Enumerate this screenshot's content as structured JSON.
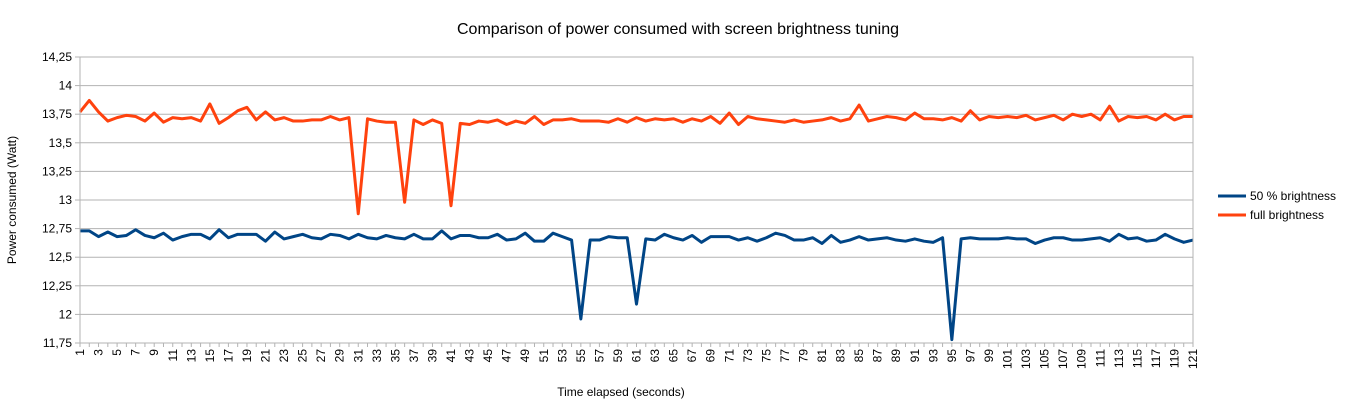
{
  "chart_data": {
    "type": "line",
    "title": "Comparison of power consumed with screen brightness tuning",
    "xlabel": "Time elapsed (seconds)",
    "ylabel": "Power consumed (Watt)",
    "ylim": [
      11.75,
      14.25
    ],
    "y_ticks": [
      "11,75",
      "12",
      "12,25",
      "12,5",
      "12,75",
      "13",
      "13,25",
      "13,5",
      "13,75",
      "14",
      "14,25"
    ],
    "x": [
      1,
      2,
      3,
      4,
      5,
      6,
      7,
      8,
      9,
      10,
      11,
      12,
      13,
      14,
      15,
      16,
      17,
      18,
      19,
      20,
      21,
      22,
      23,
      24,
      25,
      26,
      27,
      28,
      29,
      30,
      31,
      32,
      33,
      34,
      35,
      36,
      37,
      38,
      39,
      40,
      41,
      42,
      43,
      44,
      45,
      46,
      47,
      48,
      49,
      50,
      51,
      52,
      53,
      54,
      55,
      56,
      57,
      58,
      59,
      60,
      61,
      62,
      63,
      64,
      65,
      66,
      67,
      68,
      69,
      70,
      71,
      72,
      73,
      74,
      75,
      76,
      77,
      78,
      79,
      80,
      81,
      82,
      83,
      84,
      85,
      86,
      87,
      88,
      89,
      90,
      91,
      92,
      93,
      94,
      95,
      96,
      97,
      98,
      99,
      100,
      101,
      102,
      103,
      104,
      105,
      106,
      107,
      108,
      109,
      110,
      111,
      112,
      113,
      114,
      115,
      116,
      117,
      118,
      119,
      120,
      121
    ],
    "x_tick_labels": [
      "1",
      "3",
      "5",
      "7",
      "9",
      "11",
      "13",
      "15",
      "17",
      "19",
      "21",
      "23",
      "25",
      "27",
      "29",
      "31",
      "33",
      "35",
      "37",
      "39",
      "41",
      "43",
      "45",
      "47",
      "49",
      "51",
      "53",
      "55",
      "57",
      "59",
      "61",
      "63",
      "65",
      "67",
      "69",
      "71",
      "73",
      "75",
      "77",
      "79",
      "81",
      "83",
      "85",
      "87",
      "89",
      "91",
      "93",
      "95",
      "97",
      "99",
      "101",
      "103",
      "105",
      "107",
      "109",
      "111",
      "113",
      "115",
      "117",
      "119",
      "121"
    ],
    "grid": "horizontal",
    "legend_position": "right",
    "series": [
      {
        "name": "50 % brightness",
        "color": "#004586",
        "values": [
          12.73,
          12.73,
          12.68,
          12.72,
          12.68,
          12.69,
          12.74,
          12.69,
          12.67,
          12.71,
          12.65,
          12.68,
          12.7,
          12.7,
          12.66,
          12.74,
          12.67,
          12.7,
          12.7,
          12.7,
          12.64,
          12.72,
          12.66,
          12.68,
          12.7,
          12.67,
          12.66,
          12.7,
          12.69,
          12.66,
          12.7,
          12.67,
          12.66,
          12.69,
          12.67,
          12.66,
          12.7,
          12.66,
          12.66,
          12.73,
          12.66,
          12.69,
          12.69,
          12.67,
          12.67,
          12.7,
          12.65,
          12.66,
          12.71,
          12.64,
          12.64,
          12.71,
          12.68,
          12.65,
          11.96,
          12.65,
          12.65,
          12.68,
          12.67,
          12.67,
          12.09,
          12.66,
          12.65,
          12.7,
          12.67,
          12.65,
          12.69,
          12.63,
          12.68,
          12.68,
          12.68,
          12.65,
          12.67,
          12.64,
          12.67,
          12.71,
          12.69,
          12.65,
          12.65,
          12.67,
          12.62,
          12.69,
          12.63,
          12.65,
          12.68,
          12.65,
          12.66,
          12.67,
          12.65,
          12.64,
          12.66,
          12.64,
          12.63,
          12.67,
          11.78,
          12.66,
          12.67,
          12.66,
          12.66,
          12.66,
          12.67,
          12.66,
          12.66,
          12.62,
          12.65,
          12.67,
          12.67,
          12.65,
          12.65,
          12.66,
          12.67,
          12.64,
          12.7,
          12.66,
          12.67,
          12.64,
          12.65,
          12.7,
          12.66,
          12.63,
          12.65
        ]
      },
      {
        "name": "full brightness",
        "color": "#ff420e",
        "values": [
          13.77,
          13.87,
          13.77,
          13.69,
          13.72,
          13.74,
          13.73,
          13.69,
          13.76,
          13.68,
          13.72,
          13.71,
          13.72,
          13.69,
          13.84,
          13.67,
          13.72,
          13.78,
          13.81,
          13.7,
          13.77,
          13.7,
          13.72,
          13.69,
          13.69,
          13.7,
          13.7,
          13.73,
          13.7,
          13.72,
          12.88,
          13.71,
          13.69,
          13.68,
          13.68,
          12.98,
          13.7,
          13.66,
          13.7,
          13.67,
          12.95,
          13.67,
          13.66,
          13.69,
          13.68,
          13.7,
          13.66,
          13.69,
          13.67,
          13.73,
          13.66,
          13.7,
          13.7,
          13.71,
          13.69,
          13.69,
          13.69,
          13.68,
          13.71,
          13.68,
          13.72,
          13.69,
          13.71,
          13.7,
          13.71,
          13.68,
          13.71,
          13.69,
          13.73,
          13.67,
          13.76,
          13.66,
          13.73,
          13.71,
          13.7,
          13.69,
          13.68,
          13.7,
          13.68,
          13.69,
          13.7,
          13.72,
          13.69,
          13.71,
          13.83,
          13.69,
          13.71,
          13.73,
          13.72,
          13.7,
          13.76,
          13.71,
          13.71,
          13.7,
          13.72,
          13.69,
          13.78,
          13.7,
          13.73,
          13.72,
          13.73,
          13.72,
          13.74,
          13.7,
          13.72,
          13.74,
          13.7,
          13.75,
          13.73,
          13.75,
          13.7,
          13.82,
          13.69,
          13.73,
          13.72,
          13.73,
          13.7,
          13.75,
          13.7,
          13.73,
          13.73
        ]
      }
    ]
  }
}
